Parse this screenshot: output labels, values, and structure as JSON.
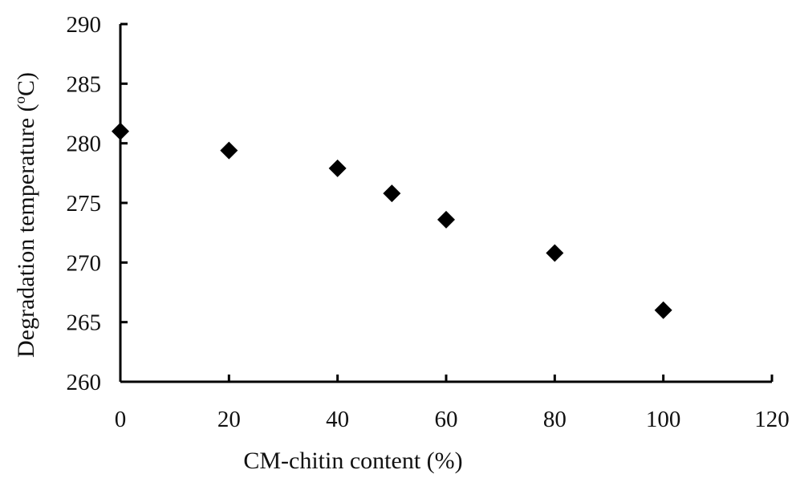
{
  "chart_data": {
    "type": "scatter",
    "title": "",
    "xlabel": "CM-chitin content (%)",
    "ylabel_main": "Degradation temperature (",
    "ylabel_sup": "o",
    "ylabel_tail": "C)",
    "xlim": [
      0,
      120
    ],
    "ylim": [
      260,
      290
    ],
    "xticks": [
      0,
      20,
      40,
      60,
      80,
      100,
      120
    ],
    "yticks": [
      260,
      265,
      270,
      275,
      280,
      285,
      290
    ],
    "grid": false,
    "legend": "none",
    "marker": "diamond",
    "color": "#000000",
    "series": [
      {
        "x": [
          0,
          20,
          40,
          50,
          60,
          80,
          100
        ],
        "y": [
          281.0,
          279.4,
          277.9,
          275.8,
          273.6,
          270.8,
          266.0
        ]
      }
    ]
  }
}
